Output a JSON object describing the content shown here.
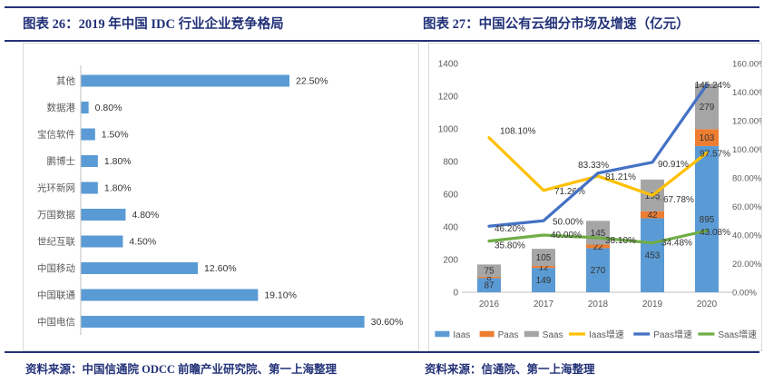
{
  "panels": {
    "left": {
      "title": "图表 26：2019 年中国 IDC 行业企业竞争格局",
      "source": "资料来源：中国信通院 ODCC 前瞻产业研究院、第一上海整理"
    },
    "right": {
      "title": "图表 27：中国公有云细分市场及增速（亿元）",
      "source": "资料来源：信通院、第一上海整理"
    }
  },
  "colors": {
    "navy": "#233278",
    "bar_blue": "#5B9BD5",
    "orange": "#ED7D31",
    "gray": "#A5A5A5",
    "yellow": "#FFC000",
    "line_blue": "#4472C4",
    "green": "#70AD47",
    "tick_text": "#595959",
    "label_text": "#333333",
    "axis_line": "#BFBFBF",
    "box_border": "#D9D9D9"
  },
  "chart_data": [
    {
      "type": "bar",
      "orientation": "horizontal",
      "title": "2019 年中国 IDC 行业企业竞争格局",
      "categories": [
        "其他",
        "数据港",
        "宝信软件",
        "鹏博士",
        "光环新网",
        "万国数据",
        "世纪互联",
        "中国移动",
        "中国联通",
        "中国电信"
      ],
      "values": [
        22.5,
        0.8,
        1.5,
        1.8,
        1.8,
        4.8,
        4.5,
        12.6,
        19.1,
        30.6
      ],
      "data_labels": [
        "22.50%",
        "0.80%",
        "1.50%",
        "1.80%",
        "1.80%",
        "4.80%",
        "4.50%",
        "12.60%",
        "19.10%",
        "30.60%"
      ],
      "xlim": [
        0,
        31
      ],
      "grid": false,
      "legend_position": "none"
    },
    {
      "type": "combo",
      "subtype": "stacked-bar+line",
      "title": "中国公有云细分市场及增速（亿元）",
      "categories": [
        "2016",
        "2017",
        "2018",
        "2019",
        "2020"
      ],
      "bar_series": [
        {
          "name": "Iaas",
          "color": "#5B9BD5",
          "values": [
            87,
            149,
            270,
            453,
            895
          ]
        },
        {
          "name": "Paas",
          "color": "#ED7D31",
          "values": [
            8,
            12,
            22,
            42,
            103
          ]
        },
        {
          "name": "Saas",
          "color": "#A5A5A5",
          "values": [
            75,
            105,
            145,
            195,
            279
          ]
        }
      ],
      "line_series": [
        {
          "name": "Iaas增速",
          "color": "#FFC000",
          "values": [
            108.1,
            71.26,
            81.21,
            67.78,
            97.57
          ]
        },
        {
          "name": "Paas增速",
          "color": "#4472C4",
          "values": [
            46.2,
            50.0,
            83.33,
            90.91,
            145.24
          ]
        },
        {
          "name": "Saas增速",
          "color": "#70AD47",
          "values": [
            35.8,
            40.0,
            38.1,
            34.48,
            43.08
          ]
        }
      ],
      "left_axis": {
        "min": 0,
        "max": 1400,
        "step": 200,
        "ticks": [
          "0",
          "200",
          "400",
          "600",
          "800",
          "1000",
          "1200",
          "1400"
        ]
      },
      "right_axis": {
        "min": 0,
        "max": 160,
        "step": 20,
        "ticks": [
          "0.00%",
          "20.00%",
          "40.00%",
          "60.00%",
          "80.00%",
          "100.00%",
          "120.00%",
          "140.00%",
          "160.00%"
        ]
      },
      "legend": [
        "Iaas",
        "Paas",
        "Saas",
        "Iaas增速",
        "Paas增速",
        "Saas增速"
      ],
      "legend_position": "bottom",
      "grid": false
    }
  ]
}
